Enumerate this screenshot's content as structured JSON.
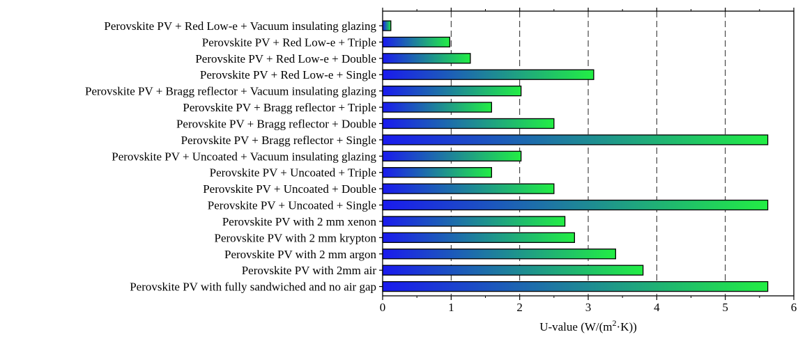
{
  "chart_data": {
    "type": "bar",
    "orientation": "horizontal",
    "categories": [
      "Perovskite PV + Red Low-e + Vacuum insulating glazing",
      "Perovskite PV + Red Low-e + Triple",
      "Perovskite PV + Red Low-e + Double",
      "Perovskite PV + Red Low-e + Single",
      "Perovskite PV + Bragg reflector + Vacuum insulating glazing",
      "Perovskite PV + Bragg reflector + Triple",
      "Perovskite PV + Bragg reflector + Double",
      "Perovskite PV + Bragg reflector + Single",
      "Perovskite PV + Uncoated + Vacuum insulating glazing",
      "Perovskite PV + Uncoated + Triple",
      "Perovskite PV + Uncoated + Double",
      "Perovskite PV + Uncoated + Single",
      "Perovskite PV with 2 mm xenon",
      "Perovskite PV with 2 mm krypton",
      "Perovskite PV with 2 mm argon",
      "Perovskite PV with 2mm air",
      "Perovskite PV with fully sandwiched and no air gap"
    ],
    "values": [
      0.12,
      0.98,
      1.28,
      3.08,
      2.02,
      1.59,
      2.5,
      5.62,
      2.02,
      1.59,
      2.5,
      5.62,
      2.66,
      2.8,
      3.4,
      3.8,
      5.62
    ],
    "xlabel_main": "U-value (W/(m",
    "xlabel_sup": "2",
    "xlabel_tail": "·K))",
    "xlim": [
      0,
      6
    ],
    "xticks": [
      "0",
      "1",
      "2",
      "3",
      "4",
      "5",
      "6"
    ],
    "grid": "vertical dashed",
    "bar_gradient": [
      "#1a1aee",
      "#22ee44"
    ]
  }
}
